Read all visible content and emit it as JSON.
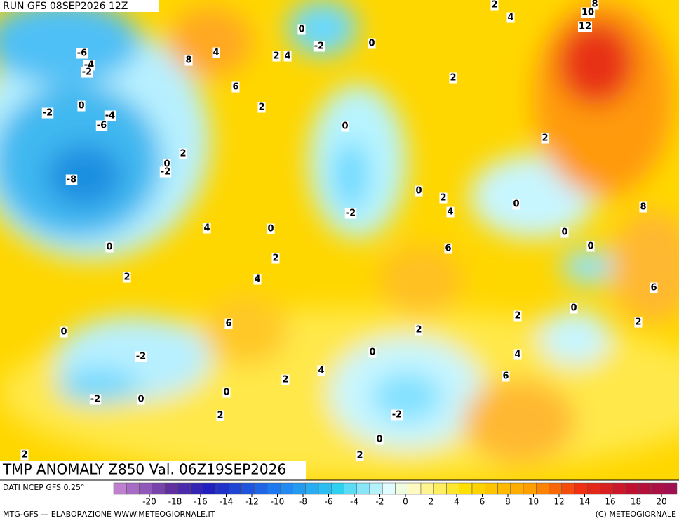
{
  "header": {
    "run": "RUN GFS 08SEP2026 12Z",
    "title": "TMP ANOMALY Z850 Val. 06Z19SEP2026"
  },
  "contour_labels": [
    8,
    2,
    4,
    10,
    12,
    0,
    -2,
    0,
    -6,
    8,
    4,
    2,
    4,
    -4,
    -2,
    2,
    6,
    0,
    -2,
    -4,
    2,
    -6,
    0,
    2,
    2,
    0,
    -2,
    -8,
    0,
    2,
    0,
    8,
    4,
    -2,
    4,
    0,
    0,
    0,
    0,
    6,
    2,
    4,
    2,
    6,
    0,
    2,
    6,
    2,
    0,
    2,
    4,
    0,
    -2,
    4,
    6,
    2,
    0,
    -2,
    0,
    2,
    -2,
    0,
    2,
    2
  ],
  "footer": {
    "source": "DATI NCEP GFS 0.25°",
    "credit": "MTG-GFS — ELABORAZIONE WWW.METEOGIORNALE.IT",
    "copyright": "(C) METEOGIORNALE",
    "scale_ticks": [
      -20,
      -18,
      -16,
      -14,
      -12,
      -10,
      -8,
      -6,
      -4,
      -2,
      0,
      2,
      4,
      6,
      8,
      10,
      12,
      14,
      16,
      18,
      20
    ]
  }
}
